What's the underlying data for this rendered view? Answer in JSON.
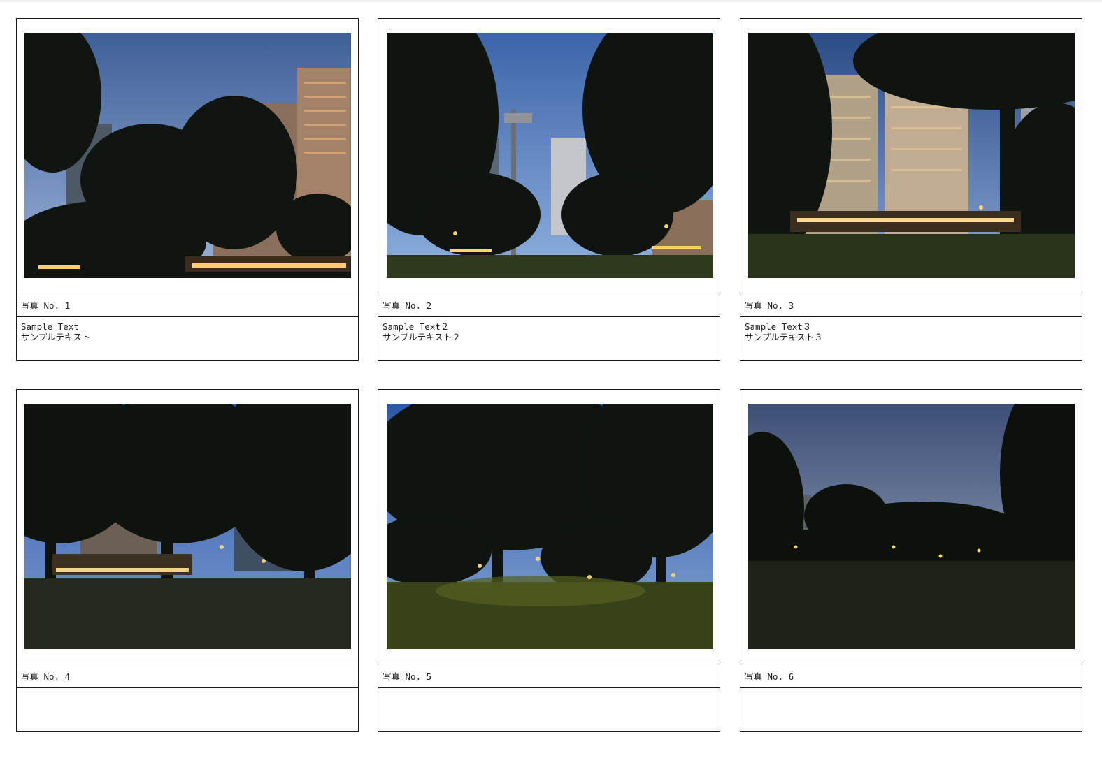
{
  "cards": [
    {
      "label": "写真 No. 1",
      "note1": "Sample Text",
      "note2": "サンプルテキスト"
    },
    {
      "label": "写真 No. 2",
      "note1": "Sample Text２",
      "note2": "サンプルテキスト２"
    },
    {
      "label": "写真 No. 3",
      "note1": "Sample Text３",
      "note2": "サンプルテキスト３"
    },
    {
      "label": "写真 No. 4",
      "note1": "",
      "note2": ""
    },
    {
      "label": "写真 No. 5",
      "note1": "",
      "note2": ""
    },
    {
      "label": "写真 No. 6",
      "note1": "",
      "note2": ""
    }
  ],
  "colors": {
    "sky_top": "#2e4f86",
    "sky_bottom": "#8aa8d6",
    "tree": "#151a12",
    "grass": "#2a3318",
    "building": "#7a6a5a",
    "light": "#ffd36b"
  }
}
